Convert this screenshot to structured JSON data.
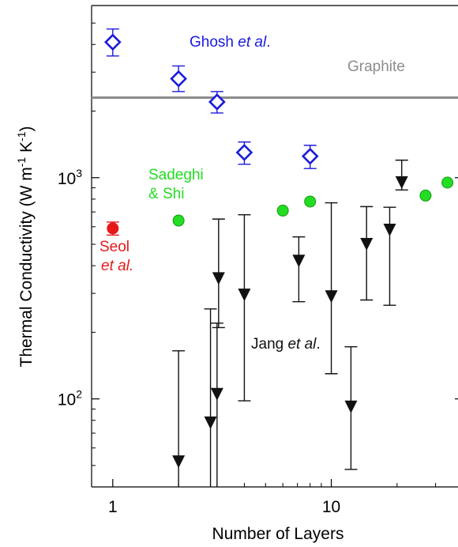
{
  "chart_data": {
    "type": "scatter",
    "title": "",
    "xlabel": "Number of Layers",
    "ylabel": "Thermal Conductivity (W m",
    "ylabel_sup1": "-1",
    "ylabel_mid": " K",
    "ylabel_sup2": "-1",
    "ylabel_end": ")",
    "xscale": "log",
    "yscale": "log",
    "xlim": [
      0.8,
      38
    ],
    "ylim": [
      40,
      6000
    ],
    "x_ticks": [
      {
        "value": 1,
        "label": "1"
      },
      {
        "value": 10,
        "label": "10"
      }
    ],
    "y_ticks": [
      {
        "value": 100,
        "label": "10",
        "sup": "2"
      },
      {
        "value": 1000,
        "label": "10",
        "sup": "3"
      }
    ],
    "grid": false,
    "reference_lines": [
      {
        "name": "Graphite",
        "y": 2300,
        "color": "#8c8c8c"
      }
    ],
    "series": [
      {
        "name": "Ghosh et al.",
        "marker": "diamond-open",
        "color": "#1a1adb",
        "points": [
          {
            "x": 1,
            "y": 4100,
            "low": 3550,
            "high": 4700
          },
          {
            "x": 2,
            "y": 2800,
            "low": 2450,
            "high": 3200
          },
          {
            "x": 3,
            "y": 2200,
            "low": 1960,
            "high": 2450
          },
          {
            "x": 4,
            "y": 1300,
            "low": 1150,
            "high": 1450
          },
          {
            "x": 8,
            "y": 1250,
            "low": 1100,
            "high": 1400
          }
        ]
      },
      {
        "name": "Sadeghi & Shi",
        "marker": "circle",
        "color": "#22dd22",
        "points": [
          {
            "x": 2,
            "y": 640
          },
          {
            "x": 6,
            "y": 710
          },
          {
            "x": 8,
            "y": 780
          },
          {
            "x": 27,
            "y": 830
          },
          {
            "x": 34,
            "y": 950
          }
        ]
      },
      {
        "name": "Seol et al.",
        "marker": "circle",
        "color": "#e81818",
        "points": [
          {
            "x": 1,
            "y": 590,
            "low": 550,
            "high": 630
          }
        ]
      },
      {
        "name": "Jang et al.",
        "marker": "triangle-down",
        "color": "#111111",
        "points": [
          {
            "x": 2,
            "y": 52,
            "low": 40,
            "high": 165
          },
          {
            "x": 2.8,
            "y": 78,
            "low": 40,
            "high": 255
          },
          {
            "x": 3,
            "y": 105,
            "low": 40,
            "high": 220
          },
          {
            "x": 3.05,
            "y": 350,
            "low": 210,
            "high": 650
          },
          {
            "x": 4,
            "y": 295,
            "low": 98,
            "high": 680
          },
          {
            "x": 7.1,
            "y": 420,
            "low": 275,
            "high": 540
          },
          {
            "x": 10,
            "y": 290,
            "low": 130,
            "high": 770
          },
          {
            "x": 12.3,
            "y": 92,
            "low": 48,
            "high": 172
          },
          {
            "x": 14.5,
            "y": 500,
            "low": 280,
            "high": 740
          },
          {
            "x": 18.5,
            "y": 580,
            "low": 265,
            "high": 735
          },
          {
            "x": 21,
            "y": 950,
            "low": 880,
            "high": 1200
          }
        ]
      }
    ],
    "annotations": [
      {
        "name": "ghosh",
        "parts": [
          {
            "text": "Ghosh "
          },
          {
            "text": "et al",
            "italic": true
          },
          {
            "text": "."
          }
        ],
        "color": "#1a1adb"
      },
      {
        "name": "graphite",
        "parts": [
          {
            "text": "Graphite"
          }
        ],
        "color": "#8c8c8c"
      },
      {
        "name": "sadeghi-1",
        "parts": [
          {
            "text": "Sadeghi"
          }
        ],
        "color": "#22dd22"
      },
      {
        "name": "sadeghi-2",
        "parts": [
          {
            "text": "& Shi"
          }
        ],
        "color": "#22dd22"
      },
      {
        "name": "seol-1",
        "parts": [
          {
            "text": "Seol"
          }
        ],
        "color": "#e81818"
      },
      {
        "name": "seol-2",
        "parts": [
          {
            "text": "et al.",
            "italic": true
          }
        ],
        "color": "#e81818"
      },
      {
        "name": "jang",
        "parts": [
          {
            "text": "Jang "
          },
          {
            "text": "et al",
            "italic": true
          },
          {
            "text": "."
          }
        ],
        "color": "#111111"
      }
    ]
  }
}
